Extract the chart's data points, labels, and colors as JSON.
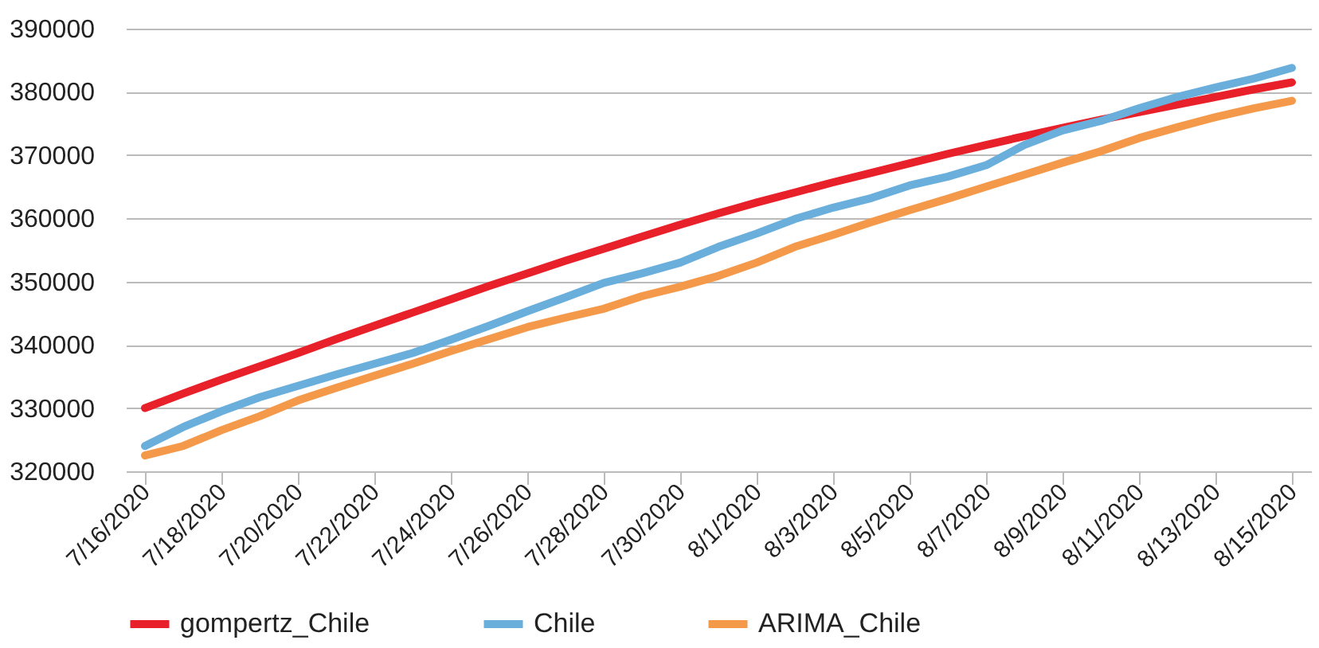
{
  "chart_data": {
    "type": "line",
    "categories": [
      "7/16/2020",
      null,
      "7/18/2020",
      null,
      "7/20/2020",
      null,
      "7/22/2020",
      null,
      "7/24/2020",
      null,
      "7/26/2020",
      null,
      "7/28/2020",
      null,
      "7/30/2020",
      null,
      "8/1/2020",
      null,
      "8/3/2020",
      null,
      "8/5/2020",
      null,
      "8/7/2020",
      null,
      "8/9/2020",
      null,
      "8/11/2020",
      null,
      "8/13/2020",
      null,
      "8/15/2020"
    ],
    "series": [
      {
        "name": "gompertz_Chile",
        "color": "#e8202a",
        "values": [
          330000,
          332300,
          334500,
          336600,
          338700,
          340900,
          343000,
          345100,
          347200,
          349300,
          351300,
          353300,
          355200,
          357100,
          359000,
          360800,
          362500,
          364100,
          365700,
          367200,
          368700,
          370200,
          371600,
          373000,
          374300,
          375600,
          376800,
          378000,
          379200,
          380400,
          381500
        ]
      },
      {
        "name": "Chile",
        "color": "#6aafdc",
        "values": [
          324000,
          327000,
          329500,
          331700,
          333500,
          335300,
          337000,
          338700,
          340800,
          343000,
          345300,
          347500,
          349800,
          351300,
          353000,
          355500,
          357600,
          359900,
          361700,
          363200,
          365200,
          366600,
          368400,
          371600,
          373900,
          375400,
          377400,
          379200,
          380700,
          382100,
          383800
        ]
      },
      {
        "name": "ARIMA_Chile",
        "color": "#f4994a",
        "values": [
          322500,
          324000,
          326500,
          328700,
          331200,
          333200,
          335100,
          337000,
          339000,
          340900,
          342800,
          344300,
          345700,
          347700,
          349200,
          350900,
          353000,
          355500,
          357400,
          359400,
          361300,
          363100,
          365000,
          366900,
          368800,
          370600,
          372700,
          374400,
          376000,
          377400,
          378600
        ]
      }
    ],
    "ylim": [
      320000,
      390000
    ],
    "yticks": [
      320000,
      330000,
      340000,
      350000,
      360000,
      370000,
      380000,
      390000
    ],
    "grid": "y",
    "legend": "bottom",
    "marker": "none",
    "line_style": "solid"
  }
}
